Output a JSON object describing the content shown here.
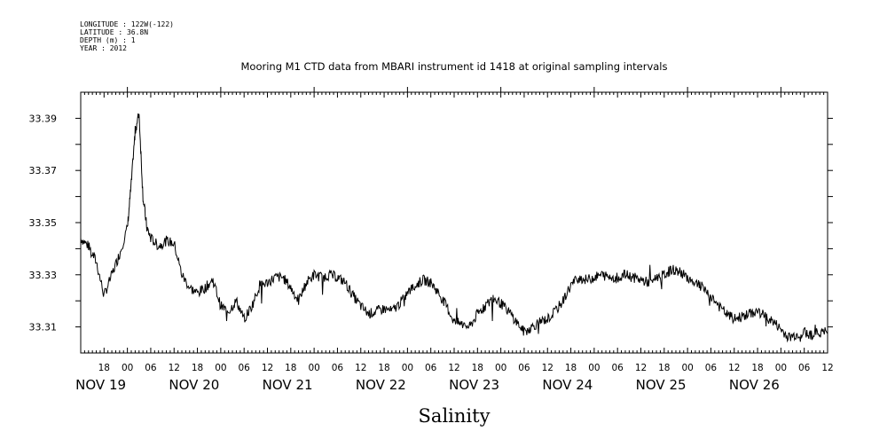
{
  "meta": {
    "longitude": "LONGITUDE : 122W(-122)",
    "latitude": "LATITUDE : 36.8N",
    "depth": "DEPTH (m) : 1",
    "year": "YEAR : 2012"
  },
  "chart_data": {
    "type": "line",
    "title": "Mooring M1 CTD data from MBARI instrument id 1418 at original sampling intervals",
    "xlabel": "Salinity",
    "ylabel": "",
    "x_range_hours_label": "2012-11-18 12:00 to 2012-11-26 12:00",
    "xlim": [
      "2012-11-18T12:00",
      "2012-11-26T12:00"
    ],
    "ylim": [
      33.3,
      33.4
    ],
    "yticks": [
      33.31,
      33.33,
      33.35,
      33.37,
      33.39
    ],
    "ytick_labels": [
      "33.31",
      "33.33",
      "33.35",
      "33.37",
      "33.39"
    ],
    "hour_tick_labels": [
      "18",
      "00",
      "06",
      "12",
      "18",
      "00",
      "06",
      "12",
      "18",
      "00",
      "06",
      "12",
      "18",
      "00",
      "06",
      "12",
      "18",
      "00",
      "06",
      "12",
      "18",
      "00",
      "06",
      "12",
      "18",
      "00",
      "06",
      "12",
      "18",
      "00",
      "06",
      "12"
    ],
    "day_labels": [
      "NOV 19",
      "NOV 20",
      "NOV 21",
      "NOV 22",
      "NOV 23",
      "NOV 24",
      "NOV 25",
      "NOV 26"
    ],
    "grid": false,
    "legend": "none",
    "line_color": "#000000",
    "series": [
      {
        "points": [
          [
            "2012-11-18T12:00",
            33.344
          ],
          [
            "2012-11-18T14:00",
            33.341
          ],
          [
            "2012-11-18T16:00",
            33.335
          ],
          [
            "2012-11-18T18:00",
            33.322
          ],
          [
            "2012-11-18T20:00",
            33.33
          ],
          [
            "2012-11-18T22:00",
            33.338
          ],
          [
            "2012-11-19T00:00",
            33.348
          ],
          [
            "2012-11-19T01:00",
            33.365
          ],
          [
            "2012-11-19T02:00",
            33.385
          ],
          [
            "2012-11-19T03:00",
            33.392
          ],
          [
            "2012-11-19T04:00",
            33.36
          ],
          [
            "2012-11-19T05:00",
            33.348
          ],
          [
            "2012-11-19T06:00",
            33.344
          ],
          [
            "2012-11-19T08:00",
            33.341
          ],
          [
            "2012-11-19T10:00",
            33.343
          ],
          [
            "2012-11-19T12:00",
            33.342
          ],
          [
            "2012-11-19T14:00",
            33.33
          ],
          [
            "2012-11-19T16:00",
            33.325
          ],
          [
            "2012-11-19T18:00",
            33.323
          ],
          [
            "2012-11-19T20:00",
            33.325
          ],
          [
            "2012-11-19T22:00",
            33.328
          ],
          [
            "2012-11-20T00:00",
            33.318
          ],
          [
            "2012-11-20T02:00",
            33.316
          ],
          [
            "2012-11-20T04:00",
            33.32
          ],
          [
            "2012-11-20T06:00",
            33.313
          ],
          [
            "2012-11-20T08:00",
            33.318
          ],
          [
            "2012-11-20T10:00",
            33.326
          ],
          [
            "2012-11-20T12:00",
            33.327
          ],
          [
            "2012-11-20T14:00",
            33.329
          ],
          [
            "2012-11-20T16:00",
            33.329
          ],
          [
            "2012-11-20T18:00",
            33.325
          ],
          [
            "2012-11-20T20:00",
            33.32
          ],
          [
            "2012-11-20T22:00",
            33.327
          ],
          [
            "2012-11-21T00:00",
            33.33
          ],
          [
            "2012-11-21T02:00",
            33.329
          ],
          [
            "2012-11-21T04:00",
            33.33
          ],
          [
            "2012-11-21T06:00",
            33.329
          ],
          [
            "2012-11-21T08:00",
            33.327
          ],
          [
            "2012-11-21T10:00",
            33.322
          ],
          [
            "2012-11-21T12:00",
            33.318
          ],
          [
            "2012-11-21T14:00",
            33.315
          ],
          [
            "2012-11-21T16:00",
            33.316
          ],
          [
            "2012-11-21T18:00",
            33.317
          ],
          [
            "2012-11-21T20:00",
            33.316
          ],
          [
            "2012-11-21T22:00",
            33.319
          ],
          [
            "2012-11-22T00:00",
            33.323
          ],
          [
            "2012-11-22T02:00",
            33.326
          ],
          [
            "2012-11-22T04:00",
            33.328
          ],
          [
            "2012-11-22T06:00",
            33.327
          ],
          [
            "2012-11-22T08:00",
            33.323
          ],
          [
            "2012-11-22T10:00",
            33.318
          ],
          [
            "2012-11-22T12:00",
            33.312
          ],
          [
            "2012-11-22T14:00",
            33.311
          ],
          [
            "2012-11-22T16:00",
            33.31
          ],
          [
            "2012-11-22T18:00",
            33.315
          ],
          [
            "2012-11-22T20:00",
            33.318
          ],
          [
            "2012-11-22T22:00",
            33.321
          ],
          [
            "2012-11-23T00:00",
            33.319
          ],
          [
            "2012-11-23T02:00",
            33.316
          ],
          [
            "2012-11-23T04:00",
            33.312
          ],
          [
            "2012-11-23T06:00",
            33.308
          ],
          [
            "2012-11-23T08:00",
            33.31
          ],
          [
            "2012-11-23T10:00",
            33.312
          ],
          [
            "2012-11-23T12:00",
            33.313
          ],
          [
            "2012-11-23T14:00",
            33.316
          ],
          [
            "2012-11-23T16:00",
            33.32
          ],
          [
            "2012-11-23T18:00",
            33.326
          ],
          [
            "2012-11-23T20:00",
            33.329
          ],
          [
            "2012-11-23T22:00",
            33.328
          ],
          [
            "2012-11-24T00:00",
            33.329
          ],
          [
            "2012-11-24T02:00",
            33.33
          ],
          [
            "2012-11-24T04:00",
            33.329
          ],
          [
            "2012-11-24T06:00",
            33.329
          ],
          [
            "2012-11-24T08:00",
            33.33
          ],
          [
            "2012-11-24T10:00",
            33.329
          ],
          [
            "2012-11-24T12:00",
            33.328
          ],
          [
            "2012-11-24T14:00",
            33.327
          ],
          [
            "2012-11-24T16:00",
            33.329
          ],
          [
            "2012-11-24T18:00",
            33.33
          ],
          [
            "2012-11-24T20:00",
            33.332
          ],
          [
            "2012-11-24T22:00",
            33.331
          ],
          [
            "2012-11-25T00:00",
            33.329
          ],
          [
            "2012-11-25T02:00",
            33.327
          ],
          [
            "2012-11-25T04:00",
            33.325
          ],
          [
            "2012-11-25T06:00",
            33.322
          ],
          [
            "2012-11-25T08:00",
            33.318
          ],
          [
            "2012-11-25T10:00",
            33.315
          ],
          [
            "2012-11-25T12:00",
            33.313
          ],
          [
            "2012-11-25T14:00",
            33.314
          ],
          [
            "2012-11-25T16:00",
            33.315
          ],
          [
            "2012-11-25T18:00",
            33.316
          ],
          [
            "2012-11-25T20:00",
            33.314
          ],
          [
            "2012-11-25T22:00",
            33.312
          ],
          [
            "2012-11-26T00:00",
            33.309
          ],
          [
            "2012-11-26T02:00",
            33.306
          ],
          [
            "2012-11-26T04:00",
            33.307
          ],
          [
            "2012-11-26T06:00",
            33.308
          ],
          [
            "2012-11-26T08:00",
            33.307
          ],
          [
            "2012-11-26T10:00",
            33.308
          ],
          [
            "2012-11-26T12:00",
            33.308
          ]
        ]
      }
    ]
  }
}
